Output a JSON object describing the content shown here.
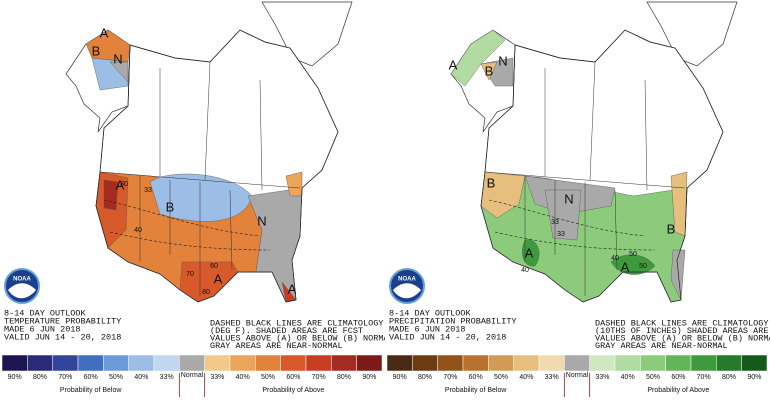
{
  "panels": [
    {
      "title_lines": [
        "8-14 DAY OUTLOOK",
        "TEMPERATURE PROBABILITY",
        "MADE  6 JUN 2018",
        "VALID  JUN 14 - 20, 2018"
      ],
      "notes": [
        "DASHED BLACK LINES ARE CLIMATOLOGY",
        "(DEG F). SHADED AREAS ARE FCST",
        "VALUES ABOVE (A) OR BELOW (B) NORMAL",
        "GRAY AREAS ARE NEAR-NORMAL"
      ],
      "logo": "NOAA",
      "map_labels": [
        "A",
        "B",
        "N",
        "A",
        "B",
        "N",
        "A",
        "A",
        "80",
        "33",
        "40",
        "70",
        "60",
        "80"
      ],
      "legend": {
        "below_labels": [
          "90%",
          "80%",
          "70%",
          "60%",
          "50%",
          "40%",
          "33%"
        ],
        "normal_label": "Normal",
        "above_labels": [
          "33%",
          "40%",
          "50%",
          "60%",
          "70%",
          "80%",
          "90%"
        ],
        "below_title": "Probability of Below",
        "above_title": "Probability of Above",
        "below_colors": [
          "#1c1550",
          "#2a2a78",
          "#33449a",
          "#3f6fbe",
          "#6b9ad6",
          "#9cbde6",
          "#c3d6ef"
        ],
        "normal_color": "#a9a9a9",
        "above_colors": [
          "#f2c98a",
          "#eba55a",
          "#e3823a",
          "#d8592a",
          "#c83c22",
          "#a52a1f",
          "#7a1b17"
        ]
      }
    },
    {
      "title_lines": [
        "8-14 DAY OUTLOOK",
        "PRECIPITATION PROBABILITY",
        "MADE  6 JUN 2018",
        "VALID  JUN 14 - 20, 2018"
      ],
      "notes": [
        "DASHED BLACK LINES ARE CLIMATOLOGY",
        "(10THS OF INCHES) SHADED AREAS ARE FCST",
        "VALUES ABOVE (A) OR BELOW (B) NORMAL",
        "GRAY AREAS ARE NEAR-NORMAL"
      ],
      "logo": "NOAA",
      "map_labels": [
        "A",
        "B",
        "N",
        "B",
        "N",
        "A",
        "A",
        "B",
        "33",
        "40",
        "50",
        "40",
        "50",
        "33"
      ],
      "legend": {
        "below_labels": [
          "90%",
          "80%",
          "70%",
          "60%",
          "50%",
          "40%",
          "33%"
        ],
        "normal_label": "Normal",
        "above_labels": [
          "33%",
          "40%",
          "50%",
          "60%",
          "70%",
          "80%",
          "90%"
        ],
        "below_title": "Probability of Below",
        "above_title": "Probability of Above",
        "below_colors": [
          "#4a2a14",
          "#6e3a12",
          "#93521a",
          "#b8722e",
          "#d29a55",
          "#e6bf7f",
          "#f1dbae"
        ],
        "normal_color": "#a9a9a9",
        "above_colors": [
          "#cfe8c2",
          "#b1dba0",
          "#8ccb7c",
          "#63b55a",
          "#3f9a3e",
          "#267a2a",
          "#155a1a"
        ]
      }
    }
  ]
}
